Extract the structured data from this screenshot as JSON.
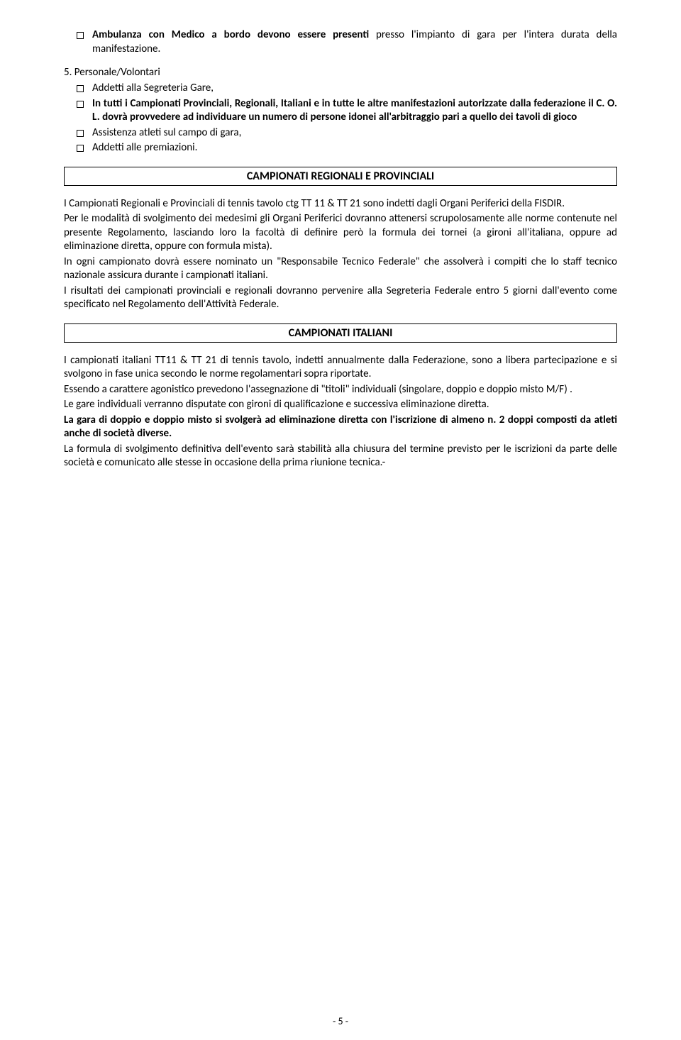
{
  "bullets_top": {
    "b0_bold": "Ambulanza con Medico a bordo devono essere presenti",
    "b0_rest": "  presso l'impianto di gara per l'intera durata della manifestazione."
  },
  "section5": {
    "num": "5. Personale/Volontari",
    "items": [
      {
        "text_before": "Addetti alla Segreteria Gare,",
        "bold_after": ""
      },
      {
        "bold": "In tutti i Campionati Provinciali, Regionali, Italiani e in tutte le altre manifestazioni autorizzate dalla federazione il C. O. L. dovrà provvedere ad individuare un numero di persone  idonei all'arbitraggio pari a quello dei  tavoli di gioco"
      },
      {
        "text": "Assistenza atleti sul campo di gara,"
      },
      {
        "text": "Addetti alle premiazioni."
      }
    ]
  },
  "title1": "CAMPIONATI REGIONALI E PROVINCIALI",
  "para1": {
    "p1": "I Campionati Regionali e Provinciali di tennis tavolo ctg TT 11 & TT 21  sono indetti dagli Organi Periferici della FISDIR.",
    "p2": "Per le modalità di svolgimento dei medesimi gli Organi Periferici dovranno attenersi scrupolosamente alle norme contenute nel presente Regolamento, lasciando loro la facoltà di definire però la formula dei tornei (a gironi all'italiana, oppure ad eliminazione diretta, oppure con formula mista).",
    "p3": "In ogni campionato dovrà essere nominato un \"Responsabile Tecnico Federale\" che assolverà i compiti che lo staff tecnico nazionale assicura durante i campionati italiani.",
    "p4": "I risultati dei campionati provinciali e regionali dovranno pervenire alla Segreteria Federale entro 5 giorni dall'evento come specificato nel Regolamento dell'Attività Federale."
  },
  "title2": "CAMPIONATI ITALIANI",
  "para2": {
    "p1": "I campionati italiani TT11 & TT 21 di tennis tavolo, indetti annualmente dalla Federazione, sono a libera partecipazione e si svolgono in fase unica secondo le norme regolamentari sopra riportate.",
    "p2": "Essendo a carattere agonistico prevedono l'assegnazione di \"titoli\" individuali (singolare, doppio e doppio misto M/F) .",
    "p3": "Le gare individuali verranno disputate con gironi di qualificazione e successiva eliminazione diretta.",
    "p4_bold": "La gara di doppio e doppio misto si svolgerà ad eliminazione diretta con l'iscrizione di almeno n. 2 doppi composti da atleti anche di società diverse.",
    "p5": "La formula di svolgimento definitiva dell'evento sarà stabilità alla chiusura del termine previsto per le iscrizioni da parte delle società e comunicato alle stesse in occasione della prima riunione tecnica.-"
  },
  "page_number": "- 5 -"
}
